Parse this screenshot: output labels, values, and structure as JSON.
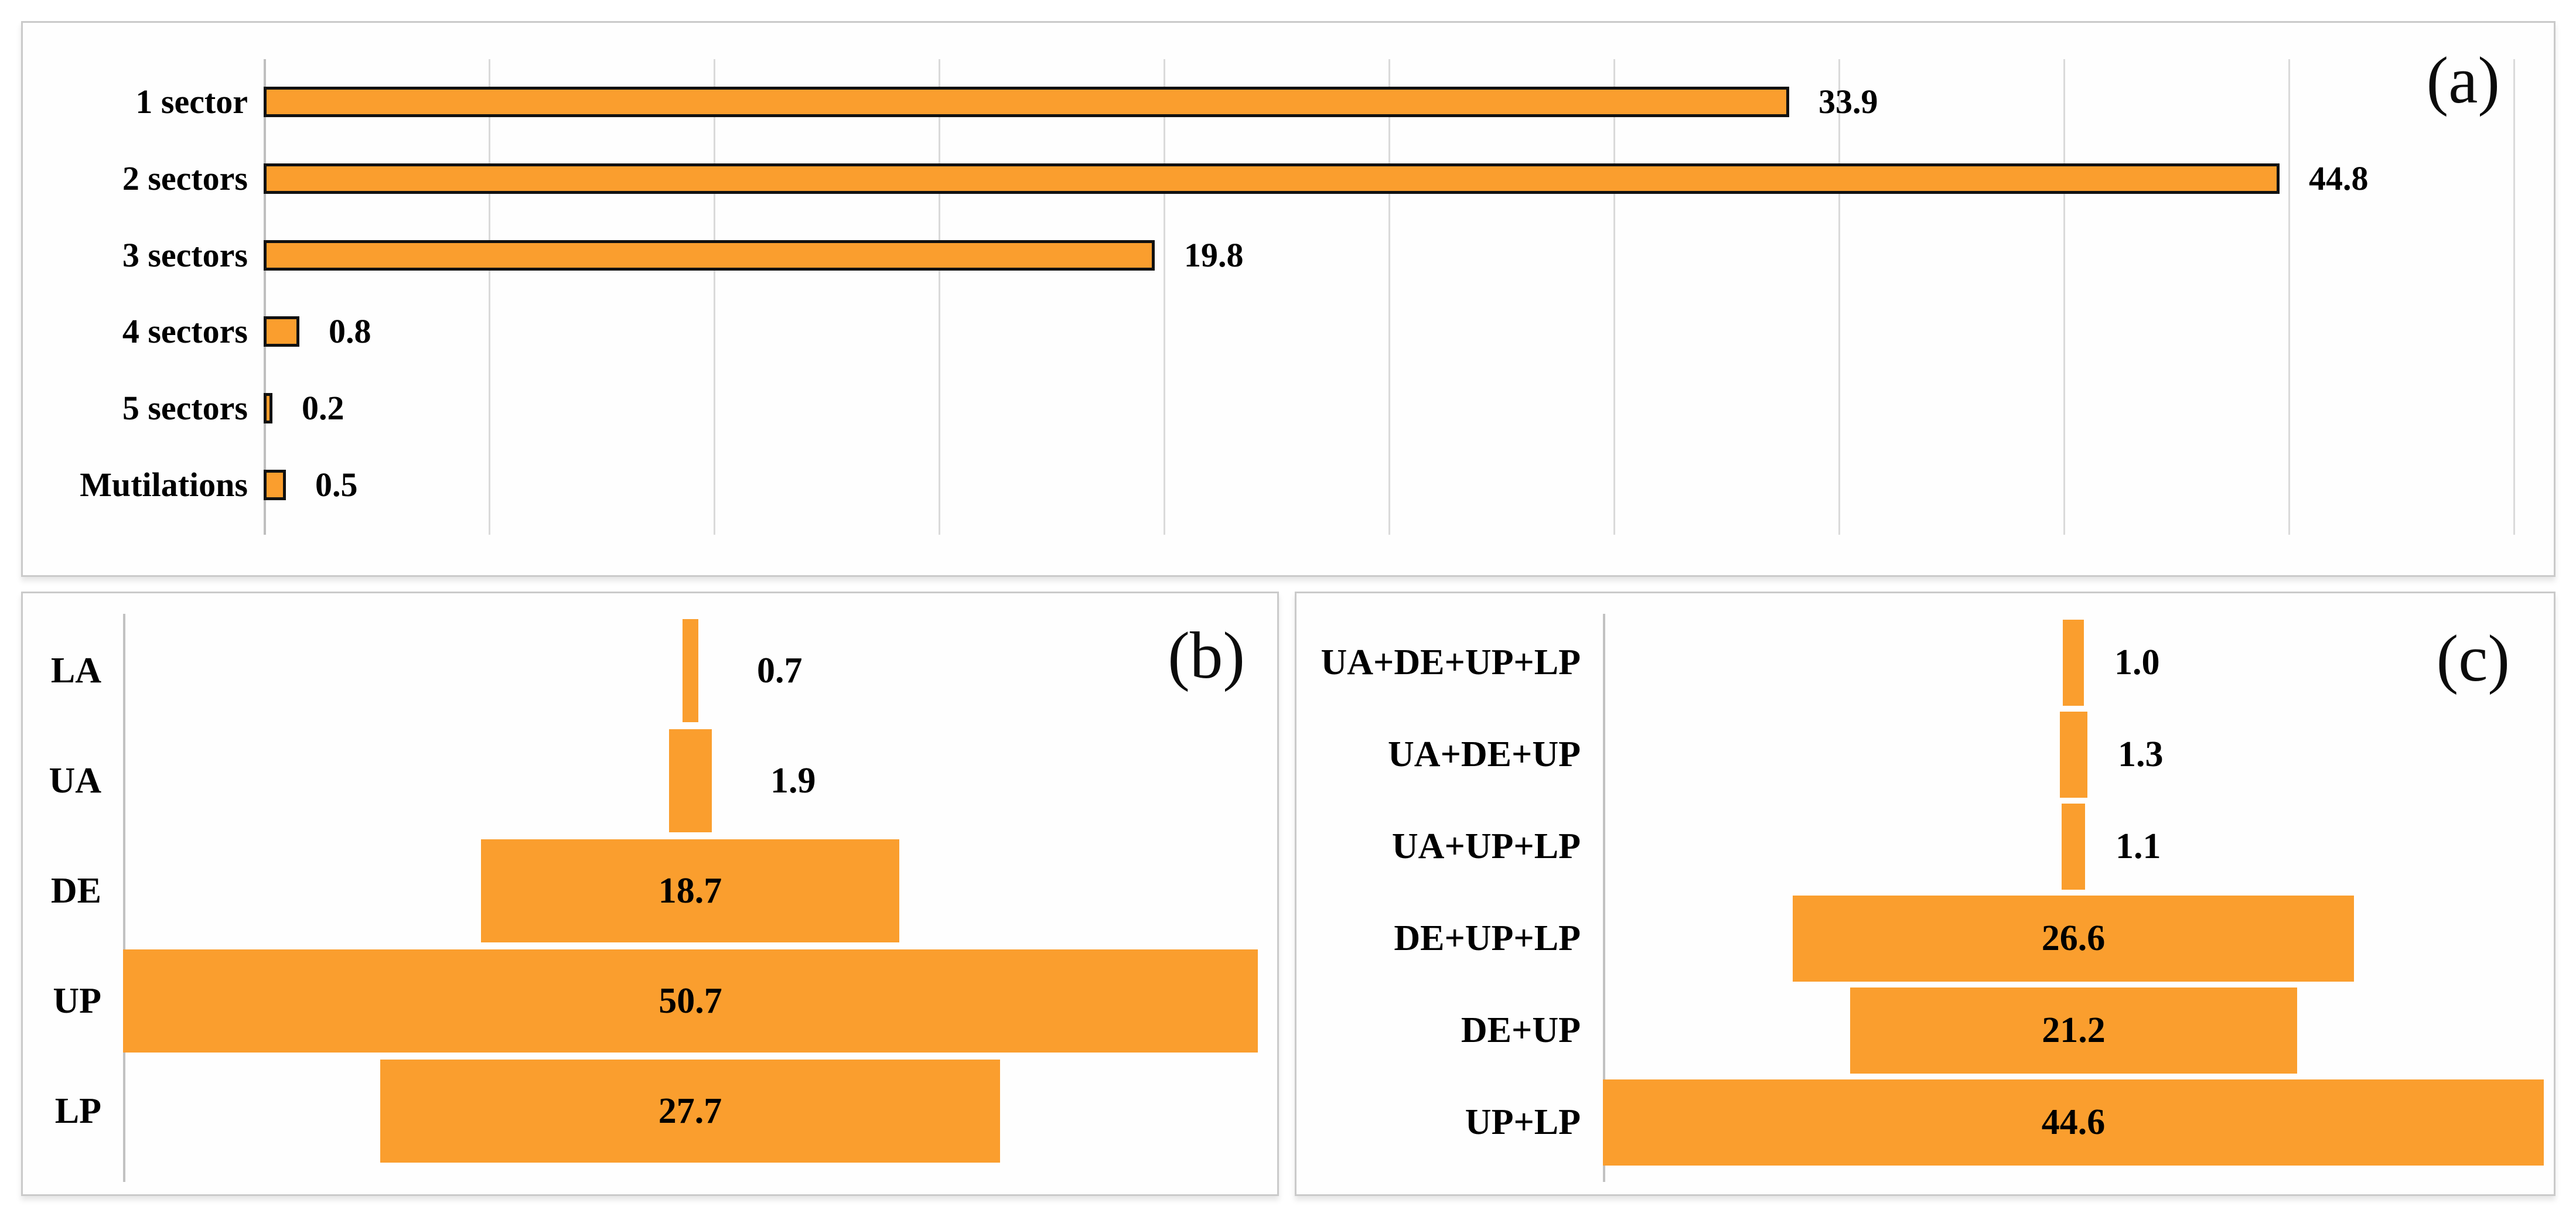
{
  "colors": {
    "bar_fill": "#FA9E2E",
    "bar_outline_a": "#111111",
    "gridline": "#DADADA",
    "axis_line": "#BFBFBF",
    "panel_border": "#CACACA",
    "text": "#000000",
    "background": "#FFFFFF"
  },
  "chart_data": [
    {
      "id": "a",
      "type": "bar",
      "orientation": "horizontal",
      "panel_label": "(a)",
      "categories": [
        "1 sector",
        "2 sectors",
        "3 sectors",
        "4 sectors",
        "5 sectors",
        "Mutilations"
      ],
      "values": [
        33.9,
        44.8,
        19.8,
        0.8,
        0.2,
        0.5
      ],
      "value_labels": [
        "33.9",
        "44.8",
        "19.8",
        "0.8",
        "0.2",
        "0.5"
      ],
      "xlim": [
        0,
        50
      ],
      "gridline_interval": 5,
      "grid": "vertical-gridlines-on",
      "value_label_position": "right-of-bar",
      "bar_outline": true,
      "legend": "none"
    },
    {
      "id": "b",
      "type": "bar",
      "orientation": "horizontal-centered",
      "panel_label": "(b)",
      "categories": [
        "LA",
        "UA",
        "DE",
        "UP",
        "LP"
      ],
      "values": [
        0.7,
        1.9,
        18.7,
        50.7,
        27.7
      ],
      "value_labels": [
        "0.7",
        "1.9",
        "18.7",
        "50.7",
        "27.7"
      ],
      "grid": "off",
      "value_label_position": "inside-if-large-else-right",
      "bar_outline": false,
      "legend": "none"
    },
    {
      "id": "c",
      "type": "bar",
      "orientation": "horizontal-centered",
      "panel_label": "(c)",
      "categories": [
        "UA+DE+UP+LP",
        "UA+DE+UP",
        "UA+UP+LP",
        "DE+UP+LP",
        "DE+UP",
        "UP+LP"
      ],
      "values": [
        1.0,
        1.3,
        1.1,
        26.6,
        21.2,
        44.6
      ],
      "value_labels": [
        "1.0",
        "1.3",
        "1.1",
        "26.6",
        "21.2",
        "44.6"
      ],
      "grid": "off",
      "value_label_position": "inside-if-large-else-right",
      "bar_outline": false,
      "legend": "none"
    }
  ]
}
